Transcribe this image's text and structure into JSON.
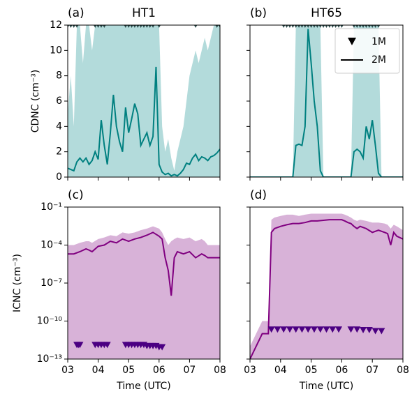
{
  "chart_data": [
    {
      "type": "line",
      "panel": "(a)",
      "title": "HT1",
      "ylabel": "CDNC (cm⁻³)",
      "xlim": [
        3,
        8
      ],
      "xticks": [
        3,
        4,
        5,
        6,
        7,
        8
      ],
      "show_xtick_labels": false,
      "ylim": [
        0,
        12
      ],
      "yticks": [
        0,
        2,
        4,
        6,
        8,
        10,
        12
      ],
      "show_ytick_labels": true,
      "log": false,
      "series": [
        {
          "style": "line",
          "color": "#008080",
          "band_color": "#b3dbdb",
          "x": [
            3.0,
            3.1,
            3.2,
            3.3,
            3.4,
            3.5,
            3.6,
            3.7,
            3.8,
            3.9,
            4.0,
            4.1,
            4.2,
            4.3,
            4.4,
            4.5,
            4.6,
            4.7,
            4.8,
            4.9,
            5.0,
            5.1,
            5.2,
            5.3,
            5.4,
            5.5,
            5.6,
            5.7,
            5.8,
            5.9,
            6.0,
            6.1,
            6.2,
            6.3,
            6.4,
            6.5,
            6.6,
            6.7,
            6.8,
            6.9,
            7.0,
            7.1,
            7.2,
            7.3,
            7.4,
            7.5,
            7.6,
            7.7,
            7.8,
            7.9,
            8.0
          ],
          "values": [
            0.7,
            0.6,
            0.5,
            1.2,
            1.5,
            1.2,
            1.5,
            1.0,
            1.3,
            2.0,
            1.4,
            4.5,
            2.5,
            1.0,
            3.5,
            6.5,
            4.0,
            2.8,
            2.0,
            5.5,
            3.5,
            4.6,
            5.8,
            5.0,
            2.5,
            3.0,
            3.5,
            2.5,
            3.2,
            8.7,
            1.0,
            0.4,
            0.2,
            0.3,
            0.1,
            0.2,
            0.1,
            0.3,
            0.6,
            1.1,
            1.0,
            1.5,
            1.8,
            1.3,
            1.6,
            1.5,
            1.3,
            1.6,
            1.7,
            1.9,
            2.2
          ],
          "upper": [
            5,
            8,
            4,
            12,
            12,
            9,
            12,
            12,
            10,
            12,
            12,
            12,
            12,
            12,
            12,
            12,
            12,
            12,
            12,
            12,
            12,
            12,
            12,
            12,
            12,
            12,
            12,
            12,
            12,
            12,
            12,
            4,
            2,
            3,
            1.5,
            0.5,
            2,
            3,
            4,
            6,
            8,
            9,
            10,
            9,
            10,
            11,
            10,
            11,
            12,
            12,
            12
          ]
        },
        {
          "style": "marker",
          "color": "#2f4f4f",
          "x": [
            3.0,
            3.1,
            3.2,
            3.3,
            3.9,
            4.0,
            4.1,
            4.2,
            4.9,
            5.0,
            5.1,
            5.2,
            5.3,
            5.4,
            5.5,
            5.6,
            5.7,
            5.8,
            6.0,
            7.2,
            7.9,
            8.0
          ],
          "values": [
            12,
            12,
            12,
            12,
            12,
            12,
            12,
            12,
            12,
            12,
            12,
            12,
            12,
            12,
            12,
            12,
            12,
            12,
            12,
            12,
            12,
            12
          ]
        }
      ]
    },
    {
      "type": "line",
      "panel": "(b)",
      "title": "HT65",
      "legend": "upper right",
      "xlim": [
        3,
        8
      ],
      "xticks": [
        3,
        4,
        5,
        6,
        7,
        8
      ],
      "show_xtick_labels": false,
      "ylim": [
        0,
        12
      ],
      "yticks": [
        0,
        2,
        4,
        6,
        8,
        10,
        12
      ],
      "show_ytick_labels": false,
      "log": false,
      "series": [
        {
          "name": "1M",
          "style": "marker",
          "color": "#2f4f4f",
          "legend_color": "#000000",
          "x": [
            4.1,
            4.2,
            4.3,
            4.4,
            4.5,
            4.6,
            4.7,
            4.8,
            4.9,
            5.0,
            5.1,
            5.2,
            5.3,
            5.4,
            5.5,
            5.6,
            5.7,
            5.8,
            5.9,
            6.0,
            6.4,
            6.5,
            6.6,
            6.7,
            6.8,
            6.9,
            7.0,
            7.1,
            7.2
          ],
          "values": [
            12,
            12,
            12,
            12,
            12,
            12,
            12,
            12,
            12,
            12,
            12,
            12,
            12,
            12,
            12,
            12,
            12,
            12,
            12,
            12,
            12,
            12,
            12,
            12,
            12,
            12,
            12,
            12,
            12
          ]
        },
        {
          "name": "2M",
          "style": "line",
          "color": "#008080",
          "band_color": "#b3dbdb",
          "legend_color": "#000000",
          "x": [
            3.0,
            3.1,
            3.2,
            3.3,
            3.4,
            3.5,
            3.6,
            3.7,
            3.8,
            3.9,
            4.0,
            4.1,
            4.2,
            4.3,
            4.4,
            4.5,
            4.6,
            4.7,
            4.8,
            4.9,
            5.0,
            5.1,
            5.2,
            5.3,
            5.4,
            5.5,
            5.6,
            5.7,
            5.8,
            5.9,
            6.0,
            6.1,
            6.2,
            6.3,
            6.4,
            6.5,
            6.6,
            6.7,
            6.8,
            6.9,
            7.0,
            7.1,
            7.2,
            7.3,
            7.4,
            7.5,
            7.6,
            7.7,
            7.8,
            7.9,
            8.0
          ],
          "values": [
            0,
            0,
            0,
            0,
            0,
            0,
            0,
            0,
            0,
            0,
            0,
            0,
            0,
            0,
            0,
            2.5,
            2.6,
            2.5,
            4,
            11.7,
            9,
            6,
            4,
            0.5,
            0,
            0,
            0,
            0,
            0,
            0,
            0,
            0,
            0,
            0,
            2.0,
            2.2,
            2.0,
            1.5,
            4.0,
            3.0,
            4.5,
            2.5,
            0.3,
            0,
            0,
            0,
            0,
            0,
            0,
            0,
            0
          ],
          "upper": [
            0,
            0,
            0,
            0,
            0,
            0,
            0,
            0,
            0,
            0,
            0,
            0,
            0,
            0,
            0,
            12,
            12,
            12,
            12,
            12,
            12,
            12,
            12,
            12,
            0,
            0,
            0,
            0,
            0,
            0,
            0,
            0,
            0,
            0,
            12,
            12,
            12,
            12,
            12,
            12,
            12,
            12,
            12,
            0,
            0,
            0,
            0,
            0,
            0,
            0,
            0
          ]
        }
      ]
    },
    {
      "type": "line",
      "panel": "(c)",
      "ylabel": "ICNC (cm⁻³)",
      "xlabel": "Time (UTC)",
      "xlim": [
        3,
        8
      ],
      "xticks": [
        {
          "value": 3,
          "label": "03"
        },
        {
          "value": 4,
          "label": "04"
        },
        {
          "value": 5,
          "label": "05"
        },
        {
          "value": 6,
          "label": "06"
        },
        {
          "value": 7,
          "label": "07"
        },
        {
          "value": 8,
          "label": "08"
        }
      ],
      "show_xtick_labels": true,
      "ylim": [
        1e-13,
        0.1
      ],
      "log": true,
      "show_ytick_labels": true,
      "yticks": [
        {
          "value": 1e-13,
          "label": "10⁻¹³"
        },
        {
          "value": 1e-10,
          "label": "10⁻¹⁰"
        },
        {
          "value": 1e-07,
          "label": "10⁻⁷"
        },
        {
          "value": 0.0001,
          "label": "10⁻⁴"
        },
        {
          "value": 0.1,
          "label": "10⁻¹"
        }
      ],
      "series": [
        {
          "style": "line",
          "color": "#800080",
          "band_color": "#d8b2d8",
          "x": [
            3.0,
            3.2,
            3.4,
            3.6,
            3.7,
            3.8,
            4.0,
            4.2,
            4.4,
            4.6,
            4.8,
            5.0,
            5.2,
            5.4,
            5.6,
            5.8,
            6.0,
            6.1,
            6.2,
            6.3,
            6.4,
            6.5,
            6.6,
            6.8,
            7.0,
            7.2,
            7.4,
            7.5,
            7.6,
            7.7,
            7.8,
            8.0
          ],
          "values": [
            2e-05,
            2e-05,
            3e-05,
            5e-05,
            4e-05,
            3e-05,
            8e-05,
            0.0001,
            0.0002,
            0.00015,
            0.0003,
            0.0002,
            0.0003,
            0.0004,
            0.0006,
            0.001,
            0.0005,
            0.0003,
            1e-05,
            1e-06,
            1e-08,
            1e-05,
            3e-05,
            2e-05,
            3e-05,
            1e-05,
            2e-05,
            1.5e-05,
            1e-05,
            1e-05,
            1e-05,
            1e-05
          ],
          "upper": [
            0.0001,
            0.0001,
            0.00015,
            0.0002,
            0.0002,
            0.00015,
            0.0003,
            0.0004,
            0.0006,
            0.0005,
            0.001,
            0.0008,
            0.001,
            0.0015,
            0.002,
            0.003,
            0.002,
            0.001,
            0.0003,
            0.0001,
            0.0002,
            0.0003,
            0.0004,
            0.0003,
            0.0004,
            0.0002,
            0.0003,
            0.0002,
            0.0001,
            0.0001,
            0.0001,
            0.0001
          ]
        },
        {
          "style": "marker",
          "color": "#4b0082",
          "x": [
            3.3,
            3.35,
            3.4,
            3.9,
            4.0,
            4.1,
            4.2,
            4.3,
            4.9,
            5.0,
            5.1,
            5.2,
            5.3,
            5.4,
            5.5,
            5.6,
            5.7,
            5.8,
            5.9,
            6.0,
            6.1
          ],
          "values": [
            1.2e-12,
            1.2e-12,
            1.2e-12,
            1.2e-12,
            1.2e-12,
            1.2e-12,
            1.2e-12,
            1.2e-12,
            1.2e-12,
            1.2e-12,
            1.2e-12,
            1.2e-12,
            1.2e-12,
            1.2e-12,
            1.2e-12,
            1e-12,
            1e-12,
            1e-12,
            1e-12,
            8e-13,
            8e-13
          ]
        }
      ]
    },
    {
      "type": "line",
      "panel": "(d)",
      "xlabel": "Time (UTC)",
      "xlim": [
        3,
        8
      ],
      "xticks": [
        {
          "value": 3,
          "label": "03"
        },
        {
          "value": 4,
          "label": "04"
        },
        {
          "value": 5,
          "label": "05"
        },
        {
          "value": 6,
          "label": "06"
        },
        {
          "value": 7,
          "label": "07"
        },
        {
          "value": 8,
          "label": "08"
        }
      ],
      "show_xtick_labels": true,
      "ylim": [
        1e-13,
        0.1
      ],
      "log": true,
      "show_ytick_labels": false,
      "yticks": [
        1e-13,
        1e-10,
        1e-07,
        0.0001,
        0.1
      ],
      "series": [
        {
          "style": "line",
          "color": "#800080",
          "band_color": "#d8b2d8",
          "x": [
            3.0,
            3.2,
            3.4,
            3.6,
            3.7,
            3.8,
            4.0,
            4.2,
            4.4,
            4.6,
            4.8,
            5.0,
            5.2,
            5.4,
            5.6,
            5.8,
            6.0,
            6.1,
            6.2,
            6.3,
            6.4,
            6.5,
            6.6,
            6.8,
            7.0,
            7.2,
            7.4,
            7.5,
            7.6,
            7.7,
            7.8,
            8.0
          ],
          "values": [
            1e-13,
            1e-12,
            1e-11,
            1e-11,
            0.001,
            0.002,
            0.003,
            0.004,
            0.005,
            0.005,
            0.006,
            0.008,
            0.008,
            0.009,
            0.01,
            0.01,
            0.01,
            0.008,
            0.006,
            0.005,
            0.003,
            0.002,
            0.003,
            0.002,
            0.001,
            0.0015,
            0.001,
            0.0008,
            0.0001,
            0.001,
            0.0005,
            0.0003
          ],
          "upper": [
            1e-12,
            1e-11,
            1e-10,
            1e-10,
            0.01,
            0.015,
            0.02,
            0.025,
            0.025,
            0.02,
            0.025,
            0.03,
            0.03,
            0.03,
            0.03,
            0.03,
            0.03,
            0.025,
            0.02,
            0.015,
            0.01,
            0.008,
            0.01,
            0.008,
            0.006,
            0.006,
            0.005,
            0.004,
            0.002,
            0.004,
            0.003,
            0.0015
          ]
        },
        {
          "style": "marker",
          "color": "#4b0082",
          "x": [
            3.7,
            3.9,
            4.1,
            4.3,
            4.5,
            4.7,
            4.9,
            5.1,
            5.3,
            5.5,
            5.7,
            5.9,
            6.3,
            6.5,
            6.7,
            6.9,
            7.1,
            7.3
          ],
          "values": [
            2e-11,
            2e-11,
            2e-11,
            2e-11,
            2e-11,
            2e-11,
            2e-11,
            2e-11,
            2e-11,
            2e-11,
            2e-11,
            2e-11,
            2e-11,
            2e-11,
            1.8e-11,
            1.8e-11,
            1.5e-11,
            1.5e-11
          ]
        }
      ]
    }
  ]
}
